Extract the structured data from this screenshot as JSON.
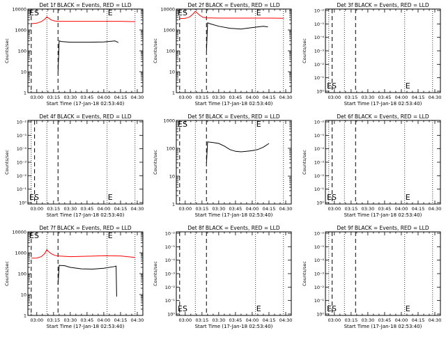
{
  "colors": {
    "events": "#000000",
    "lld": "#ff0000",
    "axis": "#000000"
  },
  "x_tick_labels": [
    "03:00",
    "03:15",
    "03:30",
    "03:45",
    "04:00",
    "04:15",
    "04:30"
  ],
  "x_tick_minutes": [
    0,
    15,
    30,
    45,
    60,
    75,
    90
  ],
  "x_range_minutes_after_0300": [
    -8,
    95
  ],
  "xlabel": "Start Time (17-Jan-18 02:53:40)",
  "ylabel": "Counts/sec",
  "log_y_labels": [
    "1",
    "10",
    "100",
    "1000",
    "10000"
  ],
  "tiny_y_labels": [
    "10⁻²",
    "10⁻⁵",
    "10⁻⁴",
    "10⁻³",
    "10⁻²",
    "10⁻¹",
    "10⁰"
  ],
  "markers": {
    "dotted_minutes": [
      -5,
      9,
      63,
      88
    ],
    "dashed_minutes": [
      19
    ],
    "labels": [
      "E",
      "S"
    ]
  },
  "chart_data": [
    {
      "type": "line",
      "title": "Det 1f BLACK = Events, RED = LLD",
      "scale": "log",
      "ylim": [
        1,
        10000
      ],
      "es_label": "top",
      "dashed_minutes": [
        -5,
        19
      ],
      "e_label_minute": 63,
      "series": [
        {
          "name": "Events",
          "color": "#000000",
          "x": [
            19,
            20,
            22,
            30,
            45,
            60,
            70,
            73
          ],
          "y": [
            10,
            300,
            280,
            260,
            260,
            265,
            300,
            250
          ]
        },
        {
          "name": "LLD",
          "color": "#ff0000",
          "x": [
            -5,
            0,
            4,
            7,
            9,
            10,
            13,
            16,
            19,
            30,
            45,
            60,
            75,
            88
          ],
          "y": [
            2000,
            2100,
            2500,
            3200,
            4200,
            3900,
            3000,
            2700,
            2600,
            2600,
            2600,
            2600,
            2600,
            2500
          ]
        }
      ]
    },
    {
      "type": "line",
      "title": "Det 2f BLACK = Events, RED = LLD",
      "scale": "log",
      "ylim": [
        1,
        10000
      ],
      "es_label": "top",
      "dashed_minutes": [
        -5,
        19
      ],
      "e_label_minute": 63,
      "series": [
        {
          "name": "Events",
          "color": "#000000",
          "x": [
            19,
            20,
            22,
            30,
            40,
            50,
            55,
            60,
            65,
            70,
            74
          ],
          "y": [
            100,
            2200,
            2000,
            1500,
            1200,
            1100,
            1200,
            1300,
            1400,
            1500,
            1400
          ]
        },
        {
          "name": "LLD",
          "color": "#ff0000",
          "x": [
            -5,
            0,
            4,
            7,
            9,
            10,
            13,
            16,
            19,
            30,
            45,
            60,
            75,
            88
          ],
          "y": [
            3500,
            3600,
            4200,
            5800,
            7800,
            7000,
            5000,
            4000,
            3800,
            3700,
            3700,
            3700,
            3700,
            3600
          ]
        }
      ]
    },
    {
      "type": "line",
      "title": "Det 3f BLACK = Events, RED = LLD",
      "scale": "tiny",
      "es_label": "bottom",
      "dashed_minutes": [
        -2,
        19
      ],
      "e_label_minute": 63,
      "series": []
    },
    {
      "type": "line",
      "title": "Det 4f BLACK = Events, RED = LLD",
      "scale": "tiny",
      "es_label": "bottom",
      "dashed_minutes": [
        -2,
        19
      ],
      "e_label_minute": 63,
      "series": []
    },
    {
      "type": "line",
      "title": "Det 5f BLACK = Events, RED = LLD",
      "scale": "log",
      "ylim": [
        1,
        1000
      ],
      "es_label": "top",
      "dashed_minutes": [
        -5,
        19
      ],
      "e_label_minute": 63,
      "series": [
        {
          "name": "Events",
          "color": "#000000",
          "x": [
            19,
            20,
            25,
            30,
            35,
            40,
            45,
            50,
            55,
            60,
            65,
            70,
            75
          ],
          "y": [
            30,
            170,
            160,
            150,
            120,
            90,
            78,
            75,
            78,
            82,
            90,
            110,
            150
          ]
        }
      ]
    },
    {
      "type": "line",
      "title": "Det 6f BLACK = Events, RED = LLD",
      "scale": "tiny",
      "es_label": "bottom",
      "dashed_minutes": [
        -2,
        19
      ],
      "e_label_minute": 63,
      "series": []
    },
    {
      "type": "line",
      "title": "Det 7f BLACK = Events, RED = LLD",
      "scale": "log",
      "ylim": [
        1,
        10000
      ],
      "es_label": "top",
      "dashed_minutes": [
        -5,
        19
      ],
      "e_label_minute": 63,
      "series": [
        {
          "name": "Events",
          "color": "#000000",
          "x": [
            19,
            20,
            25,
            30,
            40,
            50,
            60,
            70,
            71,
            71.5
          ],
          "y": [
            30,
            250,
            240,
            200,
            170,
            165,
            180,
            220,
            230,
            8
          ]
        },
        {
          "name": "LLD",
          "color": "#ff0000",
          "x": [
            -5,
            0,
            4,
            7,
            9,
            10,
            13,
            16,
            19,
            30,
            45,
            60,
            75,
            88
          ],
          "y": [
            550,
            560,
            650,
            900,
            1400,
            1200,
            900,
            750,
            700,
            650,
            680,
            720,
            700,
            600
          ]
        }
      ]
    },
    {
      "type": "line",
      "title": "Det 8f BLACK = Events, RED = LLD",
      "scale": "tiny",
      "es_label": "bottom",
      "dashed_minutes": [
        -5,
        19
      ],
      "e_label_minute": 63,
      "series": []
    },
    {
      "type": "line",
      "title": "Det 9f BLACK = Events, RED = LLD",
      "scale": "tiny",
      "es_label": "bottom",
      "dashed_minutes": [
        -2,
        19
      ],
      "e_label_minute": 63,
      "series": []
    }
  ]
}
